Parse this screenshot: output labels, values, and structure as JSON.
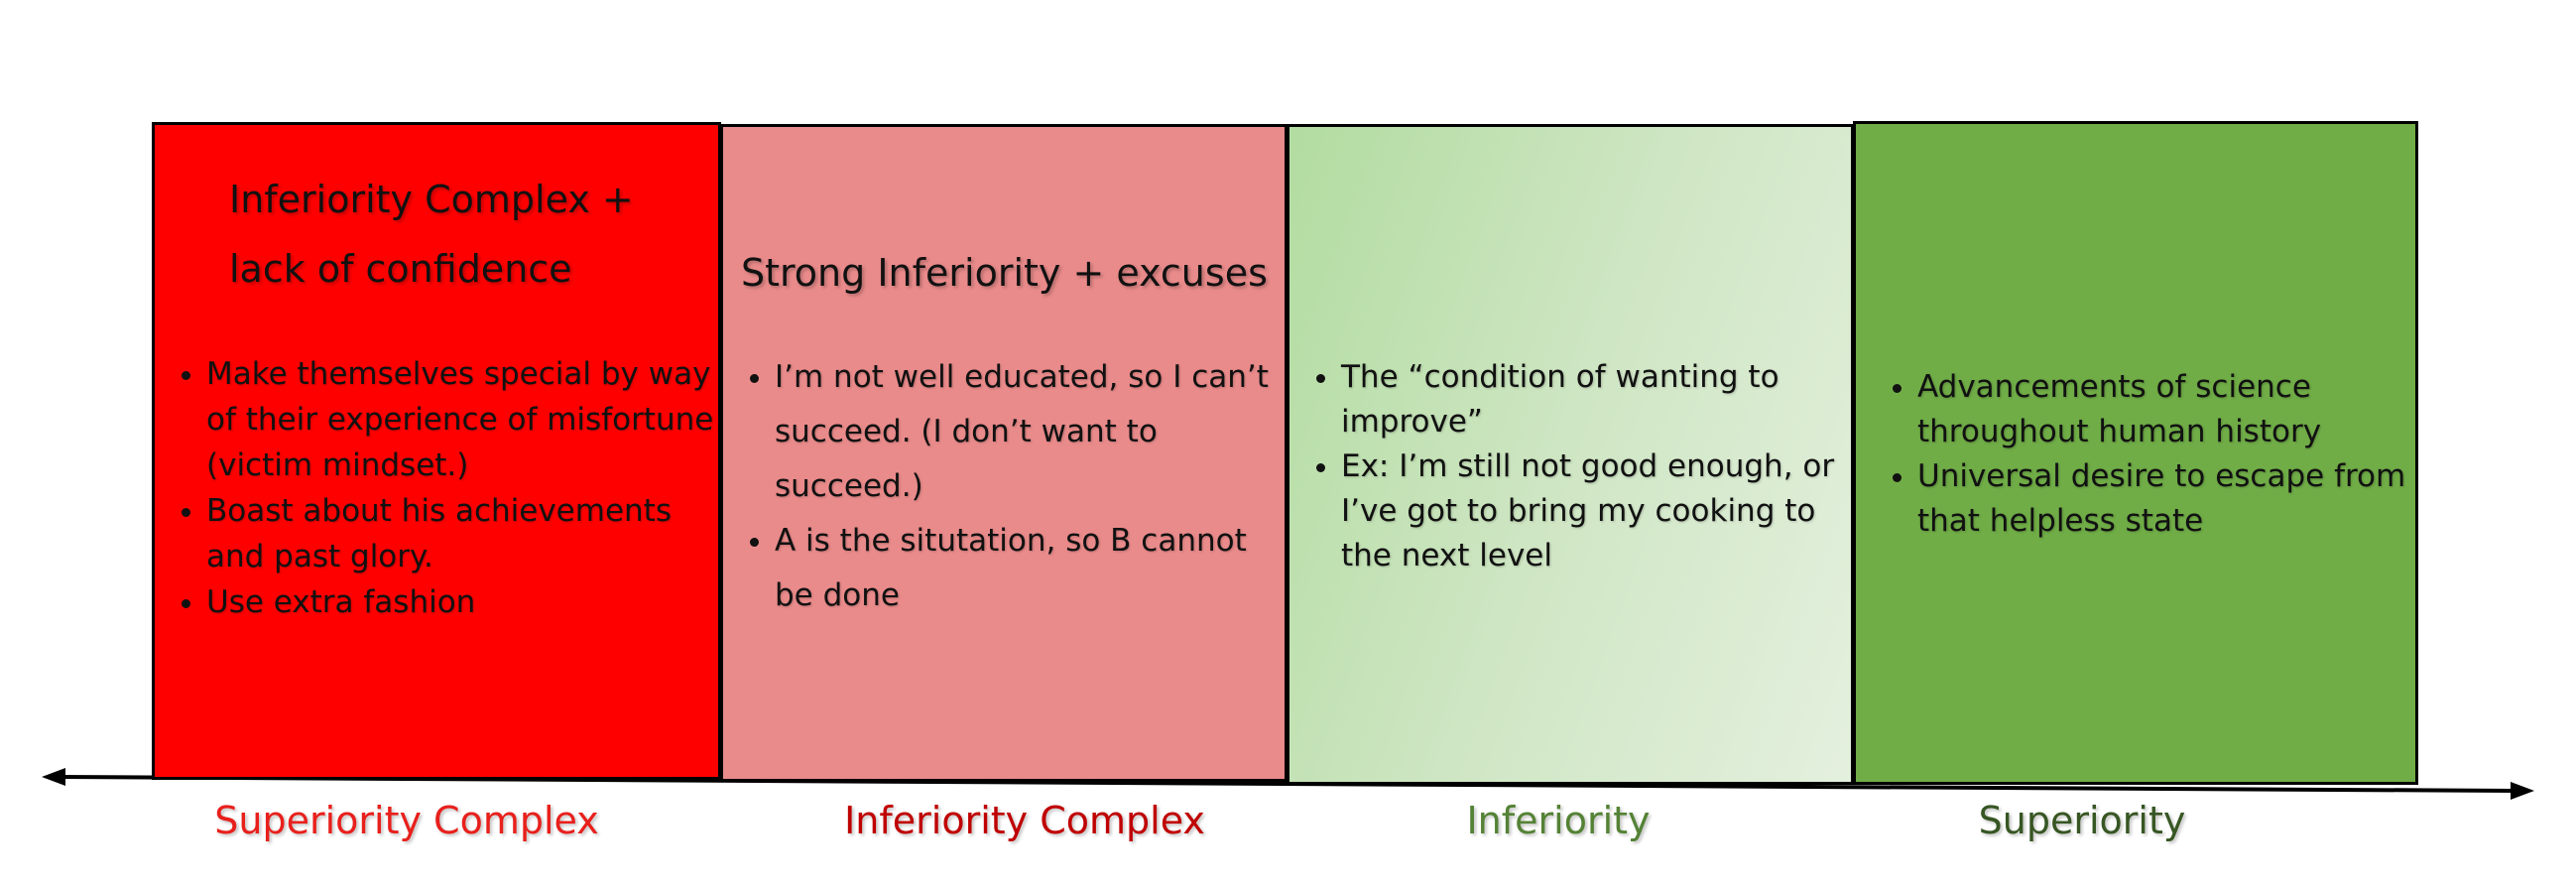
{
  "columns": [
    {
      "heading": "Inferiority Complex + lack of confidence",
      "bullets": [
        "Make themselves special by way of their experience of misfortune (victim mindset.)",
        "Boast about his achievements and past glory.",
        "Use extra fashion"
      ],
      "label": "Superiority Complex"
    },
    {
      "heading": "Strong Inferiority + excuses",
      "bullets": [
        "I’m not well educated, so I can’t succeed. (I don’t want to succeed.)",
        "A is the situtation, so B cannot be done"
      ],
      "label": "Inferiority Complex"
    },
    {
      "heading": "",
      "bullets": [
        "The “condition of wanting to improve”",
        "Ex: I’m still not good enough, or I’ve got to bring my cooking to the next level"
      ],
      "label": "Inferiority"
    },
    {
      "heading": "",
      "bullets": [
        "Advancements of science throughout human history",
        "Universal desire to escape from that helpless state"
      ],
      "label": "Superiority"
    }
  ]
}
